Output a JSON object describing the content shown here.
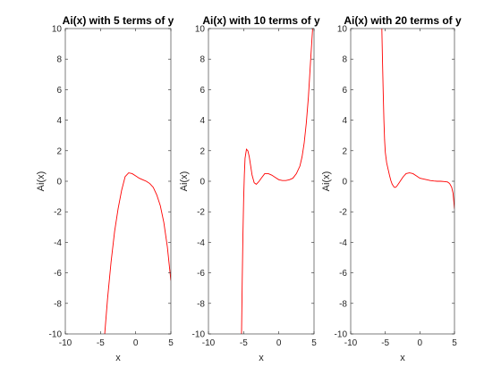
{
  "chart_data": [
    {
      "type": "line",
      "title": "Ai(x) with 5 terms of y",
      "xlabel": "x",
      "ylabel": "Ai(x)",
      "xlim": [
        -10,
        5
      ],
      "ylim": [
        -10,
        10
      ],
      "xticks": [
        "-10",
        "-5",
        "0",
        "5"
      ],
      "yticks": [
        "-10",
        "-8",
        "-6",
        "-4",
        "-2",
        "0",
        "2",
        "4",
        "6",
        "8",
        "10"
      ],
      "grid": false,
      "line_color": "#ff0000",
      "x": [
        -4.4,
        -4.0,
        -3.5,
        -3.0,
        -2.5,
        -2.0,
        -1.5,
        -1.0,
        -0.5,
        0.0,
        0.5,
        1.0,
        1.5,
        2.0,
        2.5,
        3.0,
        3.5,
        4.0,
        4.5,
        5.0
      ],
      "y": [
        -10.0,
        -7.7,
        -5.3,
        -3.3,
        -1.8,
        -0.6,
        0.3,
        0.55,
        0.5,
        0.35,
        0.2,
        0.1,
        0.0,
        -0.15,
        -0.4,
        -0.9,
        -1.6,
        -2.7,
        -4.3,
        -6.5
      ]
    },
    {
      "type": "line",
      "title": "Ai(x) with 10 terms of y",
      "xlabel": "x",
      "ylabel": "Ai(x)",
      "xlim": [
        -10,
        5
      ],
      "ylim": [
        -10,
        10
      ],
      "xticks": [
        "-10",
        "-5",
        "0",
        "5"
      ],
      "yticks": [
        "-10",
        "-8",
        "-6",
        "-4",
        "-2",
        "0",
        "2",
        "4",
        "6",
        "8",
        "10"
      ],
      "grid": false,
      "line_color": "#ff0000",
      "x": [
        -5.3,
        -5.2,
        -5.1,
        -5.0,
        -4.9,
        -4.8,
        -4.6,
        -4.4,
        -4.2,
        -4.0,
        -3.8,
        -3.5,
        -3.2,
        -3.0,
        -2.8,
        -2.5,
        -2.0,
        -1.5,
        -1.0,
        -0.5,
        0.0,
        0.5,
        1.0,
        1.5,
        2.0,
        2.5,
        3.0,
        3.3,
        3.6,
        3.9,
        4.2,
        4.5,
        4.8
      ],
      "y": [
        -10.0,
        -6.5,
        -3.5,
        -1.2,
        0.4,
        1.5,
        2.1,
        2.0,
        1.6,
        1.0,
        0.4,
        -0.1,
        -0.2,
        -0.1,
        0.0,
        0.2,
        0.5,
        0.5,
        0.4,
        0.25,
        0.1,
        0.05,
        0.05,
        0.1,
        0.2,
        0.5,
        1.0,
        1.6,
        2.5,
        3.8,
        5.5,
        7.8,
        10.0
      ]
    },
    {
      "type": "line",
      "title": "Ai(x) with 20 terms of y",
      "xlabel": "x",
      "ylabel": "Ai(x)",
      "xlim": [
        -10,
        5
      ],
      "ylim": [
        -10,
        10
      ],
      "xticks": [
        "-10",
        "-5",
        "0",
        "5"
      ],
      "yticks": [
        "-10",
        "-8",
        "-6",
        "-4",
        "-2",
        "0",
        "2",
        "4",
        "6",
        "8",
        "10"
      ],
      "grid": false,
      "line_color": "#ff0000",
      "x": [
        -5.5,
        -5.4,
        -5.3,
        -5.2,
        -5.1,
        -5.0,
        -4.8,
        -4.6,
        -4.4,
        -4.2,
        -4.0,
        -3.7,
        -3.5,
        -3.3,
        -3.0,
        -2.7,
        -2.4,
        -2.0,
        -1.5,
        -1.0,
        -0.5,
        0.0,
        0.5,
        1.0,
        1.5,
        2.0,
        2.5,
        3.0,
        3.5,
        4.0,
        4.3,
        4.6,
        4.8,
        5.0
      ],
      "y": [
        10.0,
        7.8,
        5.8,
        4.0,
        2.7,
        1.9,
        1.2,
        0.8,
        0.4,
        0.05,
        -0.2,
        -0.4,
        -0.4,
        -0.3,
        -0.1,
        0.1,
        0.3,
        0.5,
        0.55,
        0.5,
        0.35,
        0.2,
        0.15,
        0.1,
        0.05,
        0.02,
        0.0,
        0.0,
        -0.02,
        -0.05,
        -0.15,
        -0.4,
        -0.8,
        -1.8
      ]
    }
  ]
}
